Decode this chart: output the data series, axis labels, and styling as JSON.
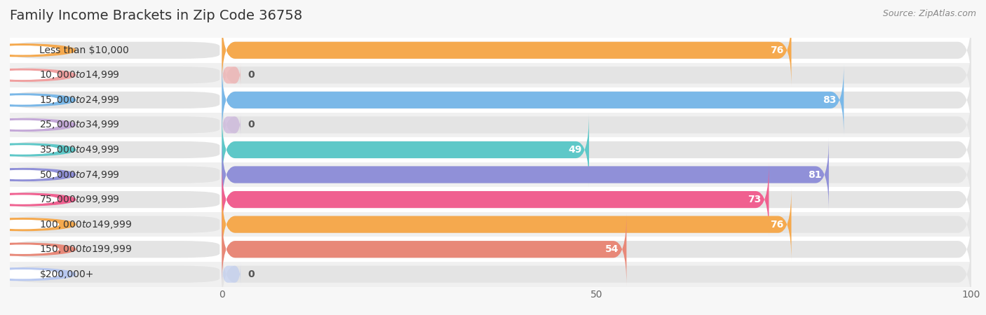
{
  "title": "Family Income Brackets in Zip Code 36758",
  "source": "Source: ZipAtlas.com",
  "categories": [
    "Less than $10,000",
    "$10,000 to $14,999",
    "$15,000 to $24,999",
    "$25,000 to $34,999",
    "$35,000 to $49,999",
    "$50,000 to $74,999",
    "$75,000 to $99,999",
    "$100,000 to $149,999",
    "$150,000 to $199,999",
    "$200,000+"
  ],
  "values": [
    76,
    0,
    83,
    0,
    49,
    81,
    73,
    76,
    54,
    0
  ],
  "bar_colors": [
    "#f5a94e",
    "#f0a0a0",
    "#7ab8e8",
    "#c4a8d8",
    "#5ec8c8",
    "#9090d8",
    "#f06090",
    "#f5a94e",
    "#e88878",
    "#b8c8f0"
  ],
  "xlim": [
    0,
    100
  ],
  "background_color": "#f7f7f7",
  "bar_background_color": "#e4e4e4",
  "row_bg_colors": [
    "#ffffff",
    "#f0f0f0"
  ],
  "title_fontsize": 14,
  "source_fontsize": 9,
  "label_fontsize": 10,
  "value_fontsize": 10
}
